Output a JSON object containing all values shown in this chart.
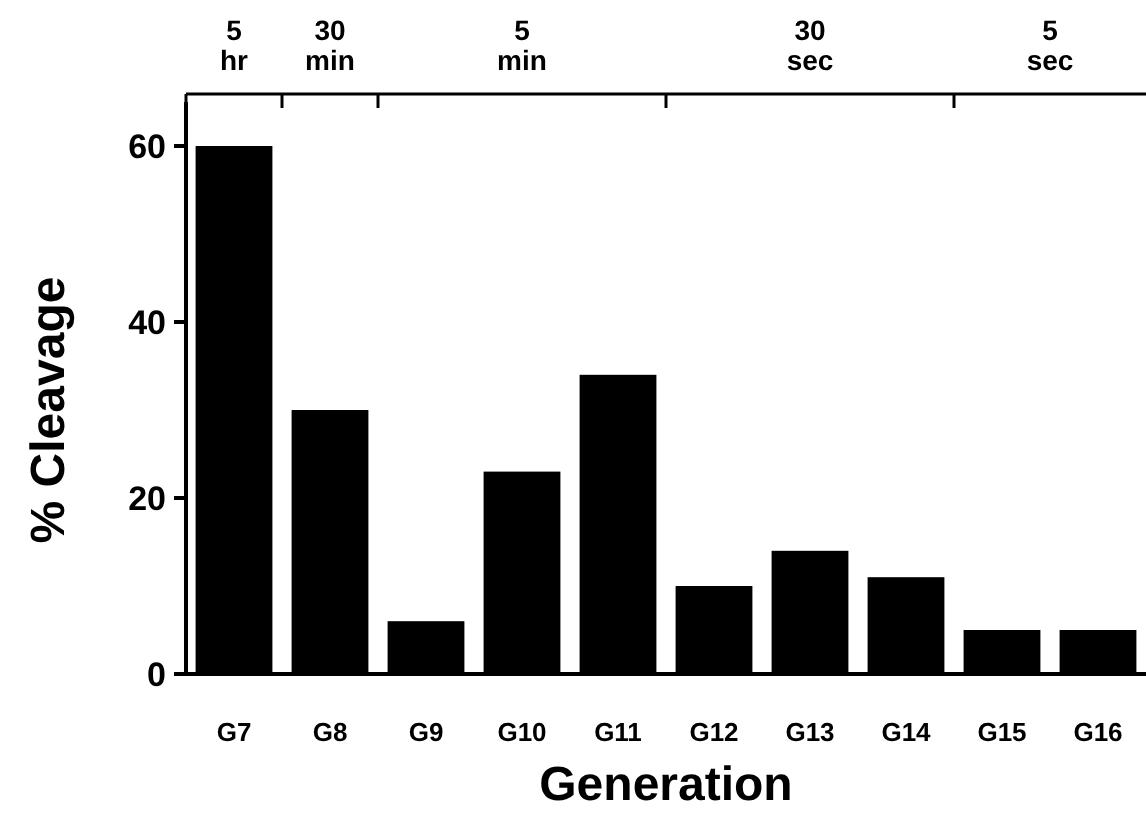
{
  "chart_data": {
    "type": "bar",
    "xlabel": "Generation",
    "ylabel": "% Cleavage",
    "categories": [
      "G7",
      "G8",
      "G9",
      "G10",
      "G11",
      "G12",
      "G13",
      "G14",
      "G15",
      "G16"
    ],
    "values": [
      60,
      30,
      6,
      23,
      34,
      10,
      14,
      11,
      5,
      5
    ],
    "color": "#000000",
    "ylim": [
      0,
      65
    ],
    "yticks": [
      0,
      20,
      40,
      60
    ],
    "grid": false,
    "annotations": [
      "5 hr",
      "30 min",
      "5 min",
      "30 sec",
      "5 sec"
    ]
  }
}
